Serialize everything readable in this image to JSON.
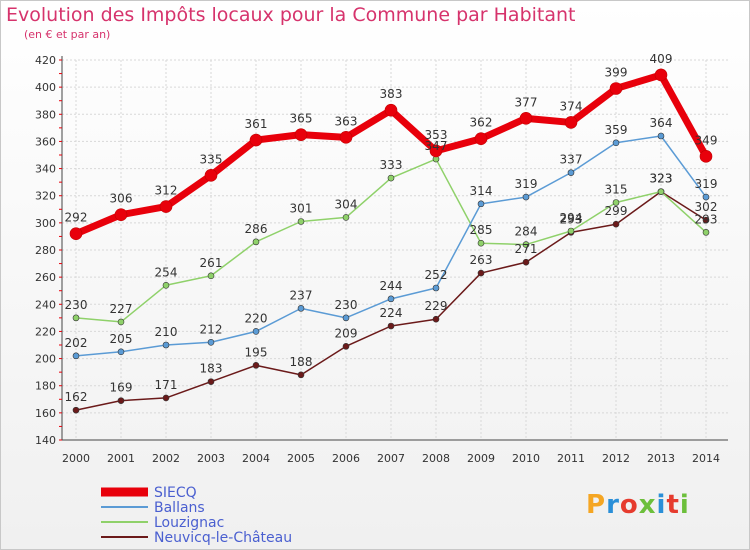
{
  "header": {
    "title": "Evolution des Impôts locaux pour la Commune par Habitant",
    "subtitle": "(en € et par an)"
  },
  "logo": {
    "text": "Proxiti",
    "colors": [
      "#f5a623",
      "#2a8fd8",
      "#e63b2e",
      "#6cbf3b",
      "#2a8fd8",
      "#e63b2e",
      "#6cbf3b"
    ]
  },
  "chart_data": {
    "type": "line",
    "title": "Evolution des Impôts locaux pour la Commune par Habitant",
    "subtitle": "(en € et par an)",
    "x": [
      "2000",
      "2001",
      "2002",
      "2003",
      "2004",
      "2005",
      "2006",
      "2007",
      "2008",
      "2009",
      "2010",
      "2011",
      "2012",
      "2013",
      "2014"
    ],
    "ylim": [
      140,
      420
    ],
    "yticks": [
      140,
      160,
      180,
      200,
      220,
      240,
      260,
      280,
      300,
      320,
      340,
      360,
      380,
      400,
      420
    ],
    "grid": true,
    "legend_position": "bottom-left",
    "series": [
      {
        "name": "SIECQ",
        "color": "#e8000b",
        "width": 7,
        "values": [
          292,
          306,
          312,
          335,
          361,
          365,
          363,
          383,
          353,
          362,
          377,
          374,
          399,
          409,
          349
        ]
      },
      {
        "name": "Ballans",
        "color": "#5b9bd5",
        "width": 1.5,
        "values": [
          202,
          205,
          210,
          212,
          220,
          237,
          230,
          244,
          252,
          314,
          319,
          337,
          359,
          364,
          319
        ]
      },
      {
        "name": "Louzignac",
        "color": "#8fd16a",
        "width": 1.5,
        "values": [
          230,
          227,
          254,
          261,
          286,
          301,
          304,
          333,
          347,
          285,
          284,
          294,
          315,
          323,
          293
        ]
      },
      {
        "name": "Neuvicq-le-Château",
        "color": "#6b1a1a",
        "width": 1.5,
        "values": [
          162,
          169,
          171,
          183,
          195,
          188,
          209,
          224,
          229,
          263,
          271,
          293,
          299,
          323,
          302
        ]
      }
    ]
  }
}
